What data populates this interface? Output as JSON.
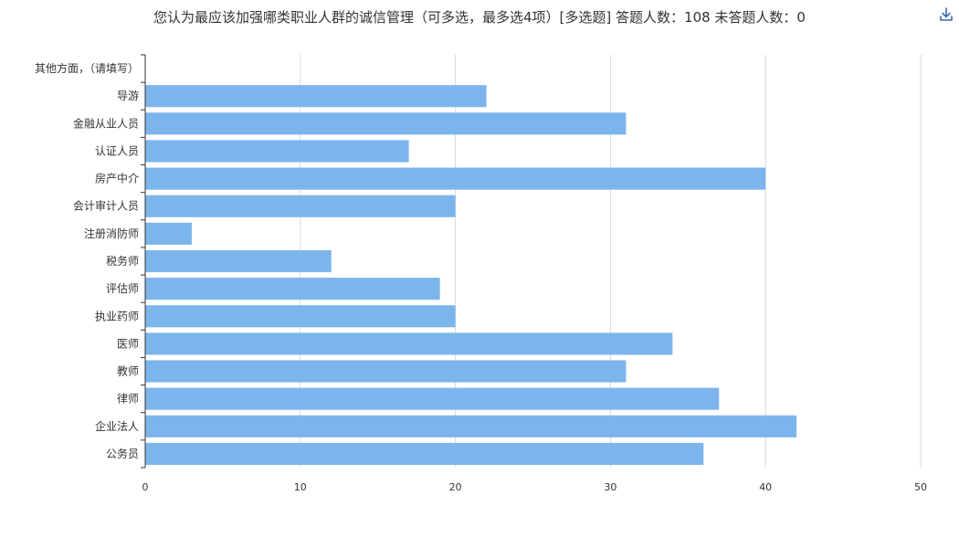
{
  "chart_data": {
    "type": "bar",
    "orientation": "horizontal",
    "title": "您认为最应该加强哪类职业人群的诚信管理（可多选，最多选4项）[多选题]  答题人数：108  未答题人数：0",
    "categories": [
      "其他方面，（请填写）",
      "导游",
      "金融从业人员",
      "认证人员",
      "房产中介",
      "会计审计人员",
      "注册消防师",
      "税务师",
      "评估师",
      "执业药师",
      "医师",
      "教师",
      "律师",
      "企业法人",
      "公务员"
    ],
    "values": [
      0,
      22,
      31,
      17,
      40,
      20,
      3,
      12,
      19,
      20,
      34,
      31,
      37,
      42,
      36
    ],
    "xlim": [
      0,
      50
    ],
    "x_ticks": [
      "0",
      "10",
      "20",
      "30",
      "40",
      "50"
    ],
    "grid": true,
    "bar_color": "#7cb5ec"
  }
}
